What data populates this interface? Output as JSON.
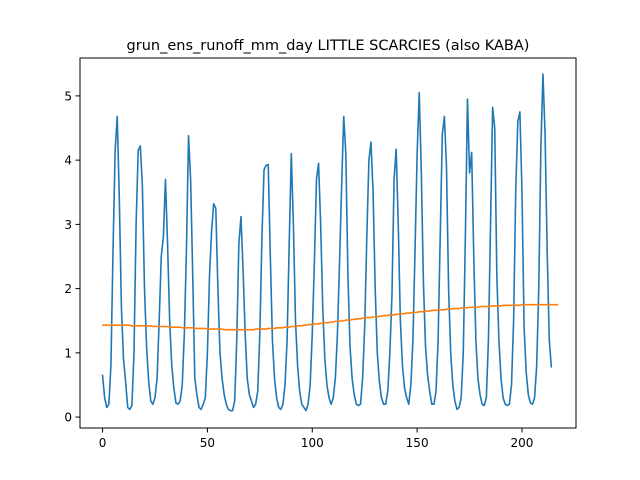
{
  "chart_data": {
    "type": "line",
    "title": "grun_ens_runoff_mm_day LITTLE SCARCIES (also KABA)",
    "xlabel": "",
    "ylabel": "",
    "xlim": [
      -10.75,
      225.75
    ],
    "ylim": [
      -0.17,
      5.59
    ],
    "xticks": [
      0,
      50,
      100,
      150,
      200
    ],
    "yticks": [
      0,
      1,
      2,
      3,
      4,
      5
    ],
    "grid": false,
    "legend": "none",
    "colors": {
      "series1": "#1f77b4",
      "series2": "#ff7f0e"
    },
    "series": [
      {
        "values": [
          0.65,
          0.3,
          0.15,
          0.2,
          0.8,
          2.6,
          4.15,
          4.68,
          3.4,
          1.7,
          0.9,
          0.55,
          0.15,
          0.12,
          0.18,
          1.0,
          3.0,
          4.15,
          4.22,
          3.6,
          2.0,
          1.1,
          0.55,
          0.25,
          0.2,
          0.3,
          0.6,
          1.5,
          2.5,
          2.8,
          3.7,
          2.7,
          1.5,
          0.8,
          0.45,
          0.22,
          0.2,
          0.25,
          0.5,
          1.3,
          2.6,
          4.38,
          3.7,
          2.2,
          0.6,
          0.35,
          0.15,
          0.12,
          0.2,
          0.3,
          1.0,
          2.2,
          2.9,
          3.32,
          3.25,
          2.0,
          1.0,
          0.6,
          0.35,
          0.2,
          0.12,
          0.1,
          0.1,
          0.25,
          1.2,
          2.7,
          3.12,
          2.3,
          1.3,
          0.6,
          0.35,
          0.25,
          0.15,
          0.2,
          0.4,
          1.3,
          2.8,
          3.85,
          3.92,
          3.93,
          2.5,
          1.2,
          0.6,
          0.3,
          0.15,
          0.12,
          0.2,
          0.5,
          1.2,
          2.7,
          4.1,
          3.0,
          1.5,
          0.8,
          0.4,
          0.2,
          0.15,
          0.1,
          0.2,
          0.5,
          1.3,
          2.4,
          3.7,
          3.95,
          3.0,
          1.7,
          0.9,
          0.5,
          0.3,
          0.2,
          0.3,
          0.6,
          1.3,
          2.4,
          3.6,
          4.68,
          4.1,
          2.2,
          1.1,
          0.6,
          0.35,
          0.2,
          0.18,
          0.2,
          0.6,
          1.4,
          2.8,
          4.0,
          4.28,
          3.5,
          2.0,
          1.0,
          0.55,
          0.3,
          0.2,
          0.2,
          0.4,
          1.0,
          1.9,
          3.7,
          4.17,
          3.0,
          1.5,
          0.8,
          0.45,
          0.3,
          0.2,
          0.5,
          1.2,
          2.6,
          4.1,
          5.05,
          3.8,
          2.1,
          1.1,
          0.65,
          0.4,
          0.2,
          0.2,
          0.4,
          1.2,
          2.8,
          4.4,
          4.68,
          3.9,
          2.0,
          1.0,
          0.5,
          0.25,
          0.12,
          0.15,
          0.3,
          1.0,
          2.8,
          4.95,
          3.8,
          4.12,
          2.5,
          1.2,
          0.6,
          0.35,
          0.2,
          0.18,
          0.3,
          1.2,
          3.0,
          4.82,
          4.5,
          2.2,
          1.2,
          0.6,
          0.3,
          0.2,
          0.18,
          0.2,
          0.5,
          1.5,
          3.5,
          4.6,
          4.75,
          3.5,
          1.4,
          0.7,
          0.35,
          0.22,
          0.2,
          0.3,
          0.8,
          2.0,
          4.2,
          5.34,
          4.4,
          2.6,
          1.2,
          0.78
        ]
      },
      {
        "values": [
          1.43,
          1.43,
          1.43,
          1.43,
          1.43,
          1.43,
          1.43,
          1.43,
          1.43,
          1.43,
          1.43,
          1.43,
          1.43,
          1.43,
          1.42,
          1.42,
          1.42,
          1.42,
          1.42,
          1.42,
          1.42,
          1.42,
          1.42,
          1.42,
          1.41,
          1.41,
          1.41,
          1.41,
          1.41,
          1.41,
          1.41,
          1.41,
          1.4,
          1.4,
          1.4,
          1.4,
          1.4,
          1.4,
          1.39,
          1.39,
          1.39,
          1.39,
          1.39,
          1.39,
          1.38,
          1.38,
          1.38,
          1.38,
          1.38,
          1.38,
          1.37,
          1.37,
          1.37,
          1.37,
          1.37,
          1.37,
          1.37,
          1.37,
          1.36,
          1.36,
          1.36,
          1.36,
          1.36,
          1.36,
          1.36,
          1.36,
          1.36,
          1.36,
          1.36,
          1.36,
          1.36,
          1.36,
          1.36,
          1.37,
          1.37,
          1.37,
          1.37,
          1.37,
          1.37,
          1.38,
          1.38,
          1.38,
          1.38,
          1.39,
          1.39,
          1.39,
          1.39,
          1.4,
          1.4,
          1.4,
          1.41,
          1.41,
          1.41,
          1.42,
          1.42,
          1.42,
          1.43,
          1.43,
          1.44,
          1.44,
          1.44,
          1.45,
          1.45,
          1.45,
          1.46,
          1.46,
          1.47,
          1.47,
          1.47,
          1.48,
          1.48,
          1.49,
          1.49,
          1.49,
          1.5,
          1.5,
          1.51,
          1.51,
          1.51,
          1.52,
          1.52,
          1.53,
          1.53,
          1.53,
          1.54,
          1.54,
          1.55,
          1.55,
          1.55,
          1.56,
          1.56,
          1.56,
          1.57,
          1.57,
          1.58,
          1.58,
          1.58,
          1.59,
          1.59,
          1.59,
          1.6,
          1.6,
          1.61,
          1.61,
          1.61,
          1.62,
          1.62,
          1.62,
          1.63,
          1.63,
          1.63,
          1.64,
          1.64,
          1.64,
          1.65,
          1.65,
          1.65,
          1.66,
          1.66,
          1.66,
          1.67,
          1.67,
          1.67,
          1.67,
          1.68,
          1.68,
          1.68,
          1.69,
          1.69,
          1.69,
          1.69,
          1.7,
          1.7,
          1.7,
          1.7,
          1.71,
          1.71,
          1.71,
          1.71,
          1.71,
          1.72,
          1.72,
          1.72,
          1.72,
          1.72,
          1.73,
          1.73,
          1.73,
          1.73,
          1.73,
          1.73,
          1.74,
          1.74,
          1.74,
          1.74,
          1.74,
          1.74,
          1.74,
          1.74,
          1.74,
          1.75,
          1.75,
          1.75,
          1.75,
          1.75,
          1.75,
          1.75,
          1.75,
          1.75,
          1.75,
          1.75,
          1.75,
          1.75,
          1.75,
          1.75,
          1.75,
          1.75,
          1.75
        ]
      }
    ]
  }
}
